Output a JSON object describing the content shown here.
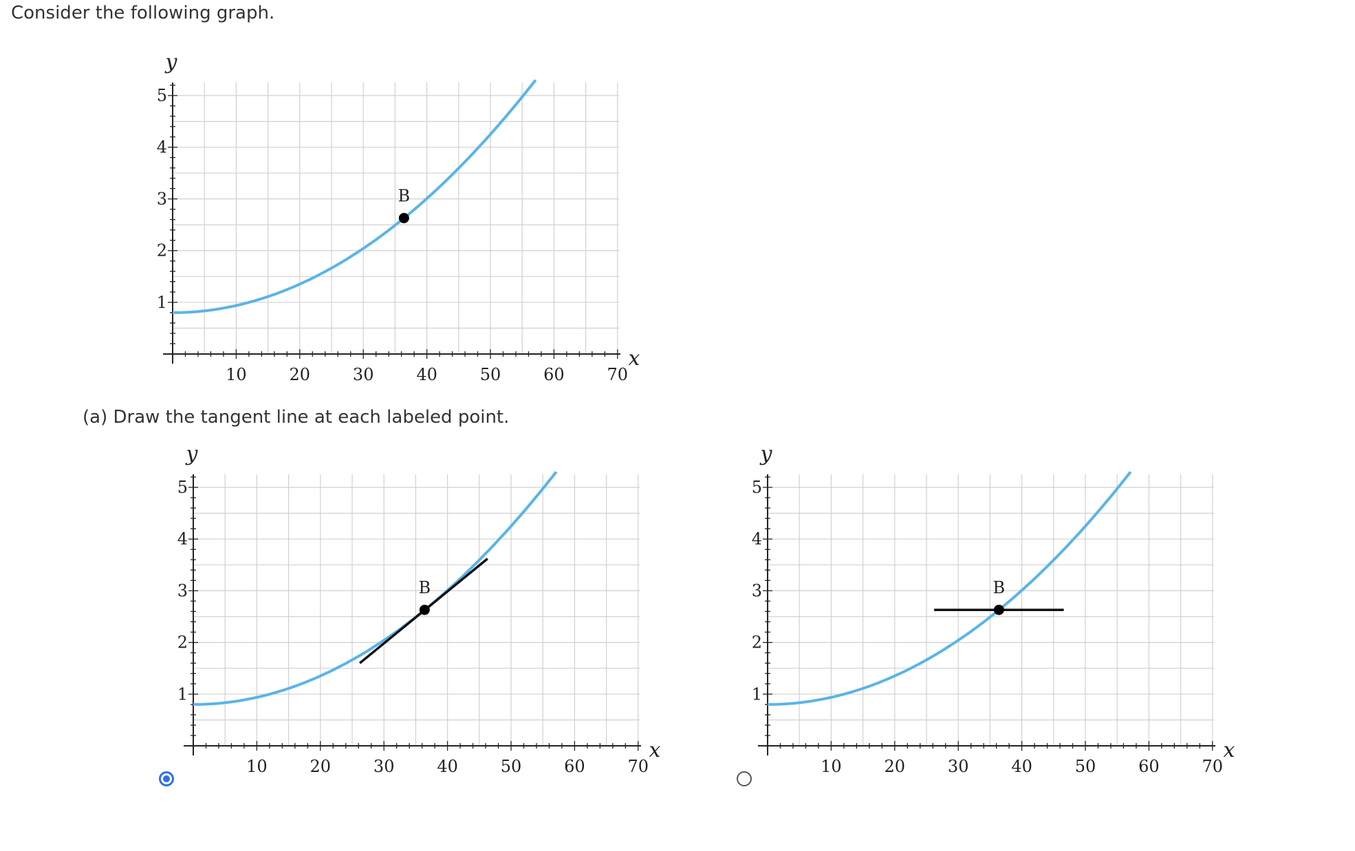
{
  "prompt": "Consider the following graph.",
  "part_a": {
    "label": "(a) Draw the tangent line at each labeled point."
  },
  "options": [
    {
      "selected": true
    },
    {
      "selected": false
    }
  ],
  "colors": {
    "curve": "#5ab4e8",
    "tangent": "#111111",
    "grid": "#d0d0d0",
    "accent": "#2f6fe8"
  },
  "chart_data": [
    {
      "id": "main",
      "type": "line",
      "title": "",
      "xlabel": "x",
      "ylabel": "y",
      "xlim": [
        0,
        72
      ],
      "ylim": [
        0,
        5.3
      ],
      "x_ticks": [
        10,
        20,
        30,
        40,
        50,
        60,
        70
      ],
      "x_tick_labels": [
        "10",
        "20",
        "30",
        "40",
        "50",
        "60",
        "70"
      ],
      "y_ticks": [
        1,
        2,
        3,
        4,
        5
      ],
      "y_tick_labels": [
        "1",
        "2",
        "3",
        "4",
        "5"
      ],
      "grid": true,
      "series": [
        {
          "function": "0.8 + 0.00138*x^2",
          "x_range": [
            0,
            57
          ]
        }
      ],
      "points": [
        {
          "label": "B",
          "x": 36.4,
          "y": 2.63
        }
      ],
      "tangent": null
    },
    {
      "id": "option-a",
      "type": "line",
      "title": "",
      "xlabel": "x",
      "ylabel": "y",
      "xlim": [
        0,
        72
      ],
      "ylim": [
        0,
        5.3
      ],
      "x_ticks": [
        10,
        20,
        30,
        40,
        50,
        60,
        70
      ],
      "x_tick_labels": [
        "10",
        "20",
        "30",
        "40",
        "50",
        "60",
        "70"
      ],
      "y_ticks": [
        1,
        2,
        3,
        4,
        5
      ],
      "y_tick_labels": [
        "1",
        "2",
        "3",
        "4",
        "5"
      ],
      "grid": true,
      "series": [
        {
          "function": "0.8 + 0.00138*x^2",
          "x_range": [
            0,
            57
          ]
        }
      ],
      "points": [
        {
          "label": "B",
          "x": 36.4,
          "y": 2.63
        }
      ],
      "tangent": {
        "x": [
          26.2,
          46.3
        ],
        "y": [
          1.6,
          3.62
        ]
      }
    },
    {
      "id": "option-b",
      "type": "line",
      "title": "",
      "xlabel": "x",
      "ylabel": "y",
      "xlim": [
        0,
        72
      ],
      "ylim": [
        0,
        5.3
      ],
      "x_ticks": [
        10,
        20,
        30,
        40,
        50,
        60,
        70
      ],
      "x_tick_labels": [
        "10",
        "20",
        "30",
        "40",
        "50",
        "60",
        "70"
      ],
      "y_ticks": [
        1,
        2,
        3,
        4,
        5
      ],
      "y_tick_labels": [
        "1",
        "2",
        "3",
        "4",
        "5"
      ],
      "grid": true,
      "series": [
        {
          "function": "0.8 + 0.00138*x^2",
          "x_range": [
            0,
            57
          ]
        }
      ],
      "points": [
        {
          "label": "B",
          "x": 36.4,
          "y": 2.63
        }
      ],
      "tangent": {
        "x": [
          26.2,
          46.6
        ],
        "y": [
          2.63,
          2.63
        ]
      }
    }
  ]
}
